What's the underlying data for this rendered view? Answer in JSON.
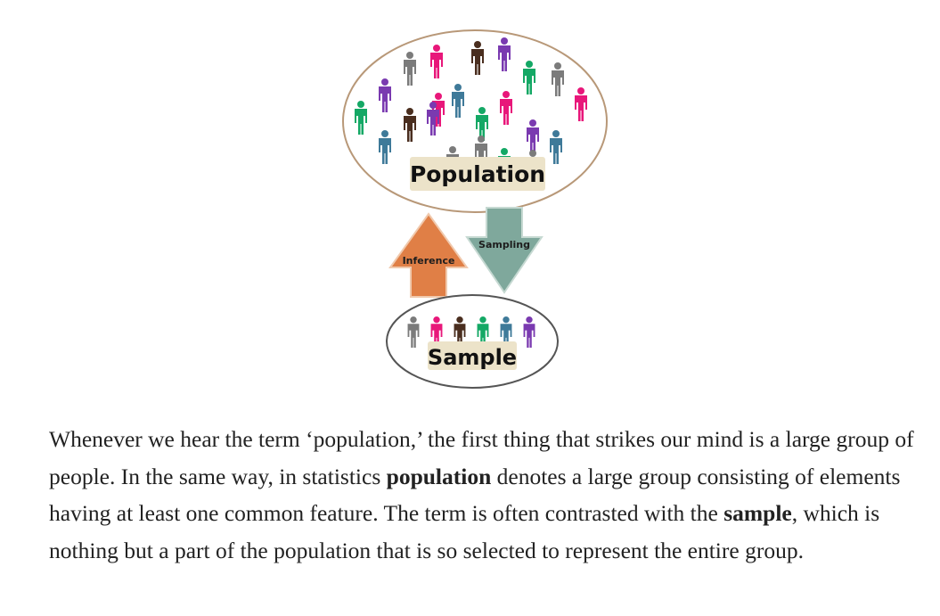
{
  "diagram": {
    "population_label": "Population",
    "sample_label": "Sample",
    "sampling_label": "Sampling",
    "inference_label": "Inference",
    "colors": {
      "pink": "#e8177a",
      "purple": "#7a3ab0",
      "green": "#14a865",
      "gray": "#7b7b7b",
      "brown": "#4a2e1f",
      "blue": "#3f7a99",
      "inference_arrow": "#e07f46",
      "sampling_arrow": "#7fa89c",
      "label_box": "#ece3c9"
    },
    "population_people": [
      {
        "c": "gray"
      },
      {
        "c": "pink"
      },
      {
        "c": "brown"
      },
      {
        "c": "purple"
      },
      {
        "c": "green"
      },
      {
        "c": "gray"
      },
      {
        "c": "purple"
      },
      {
        "c": "pink"
      },
      {
        "c": "blue"
      },
      {
        "c": "green"
      },
      {
        "c": "pink"
      },
      {
        "c": "gray"
      },
      {
        "c": "pink"
      },
      {
        "c": "green"
      },
      {
        "c": "brown"
      },
      {
        "c": "purple"
      },
      {
        "c": "purple"
      },
      {
        "c": "blue"
      },
      {
        "c": "green"
      },
      {
        "c": "blue"
      },
      {
        "c": "gray"
      },
      {
        "c": "gray"
      }
    ],
    "sample_people": [
      {
        "c": "gray"
      },
      {
        "c": "pink"
      },
      {
        "c": "brown"
      },
      {
        "c": "green"
      },
      {
        "c": "blue"
      },
      {
        "c": "purple"
      }
    ]
  },
  "article": {
    "p1": "Whenever we hear the term ‘population,’ the first thing that strikes our mind is a large group of people. In the same way, in statistics ",
    "term1": "population",
    "p2": " denotes a large group consisting of elements having at least one common feature. The term is often contrasted with the ",
    "term2": "sample",
    "p3": ", which is nothing but a part of the population that is so selected to represent the entire group."
  }
}
